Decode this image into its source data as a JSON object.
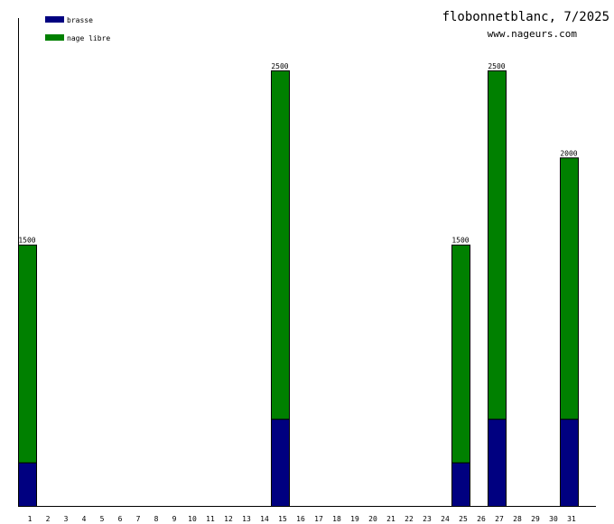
{
  "header": {
    "title": "flobonnetblanc, 7/2025",
    "url": "www.nageurs.com"
  },
  "chart_data": {
    "type": "bar",
    "stacked": true,
    "categories": [
      "1",
      "2",
      "3",
      "4",
      "5",
      "6",
      "7",
      "8",
      "9",
      "10",
      "11",
      "12",
      "13",
      "14",
      "15",
      "16",
      "17",
      "18",
      "19",
      "20",
      "21",
      "22",
      "23",
      "24",
      "25",
      "26",
      "27",
      "28",
      "29",
      "30",
      "31"
    ],
    "series": [
      {
        "name": "brasse",
        "color": "#000080",
        "values": [
          250,
          0,
          0,
          0,
          0,
          0,
          0,
          0,
          0,
          0,
          0,
          0,
          0,
          0,
          500,
          0,
          0,
          0,
          0,
          0,
          0,
          0,
          0,
          0,
          250,
          0,
          500,
          0,
          0,
          0,
          500
        ]
      },
      {
        "name": "nage libre",
        "color": "#008000",
        "values": [
          1250,
          0,
          0,
          0,
          0,
          0,
          0,
          0,
          0,
          0,
          0,
          0,
          0,
          0,
          2000,
          0,
          0,
          0,
          0,
          0,
          0,
          0,
          0,
          0,
          1250,
          0,
          2000,
          0,
          0,
          0,
          1500
        ]
      }
    ],
    "totals": [
      1500,
      0,
      0,
      0,
      0,
      0,
      0,
      0,
      0,
      0,
      0,
      0,
      0,
      0,
      2500,
      0,
      0,
      0,
      0,
      0,
      0,
      0,
      0,
      0,
      1500,
      0,
      2500,
      0,
      0,
      0,
      2000
    ],
    "ylim": [
      0,
      2800
    ],
    "legend_position": "top-left",
    "grid": false
  }
}
